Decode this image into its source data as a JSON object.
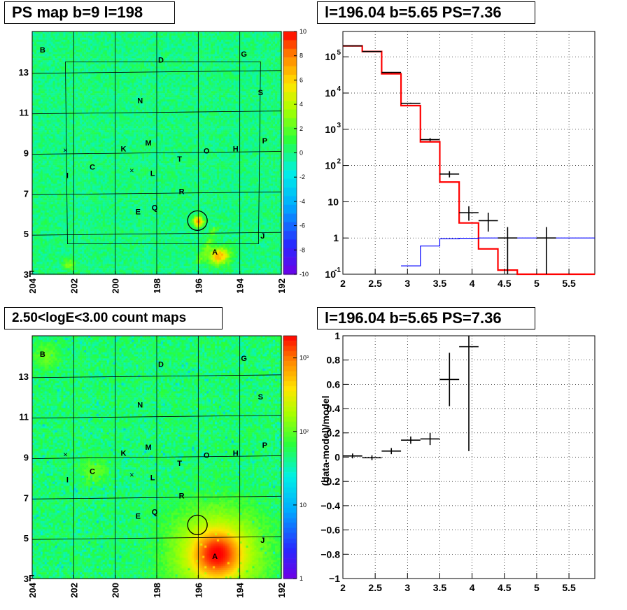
{
  "panels": {
    "ps_map": {
      "title": "PS map b=9 l=198",
      "x_ticks": [
        "204",
        "202",
        "200",
        "198",
        "196",
        "194",
        "192"
      ],
      "y_ticks": [
        "3",
        "5",
        "7",
        "9",
        "11",
        "13"
      ],
      "colorbar_ticks": [
        "10",
        "8",
        "6",
        "4",
        "2",
        "0",
        "-2",
        "-4",
        "-6",
        "-8",
        "-10"
      ],
      "corner_label": "F"
    },
    "count_map": {
      "title": "2.50<logE<3.00 count maps",
      "x_ticks": [
        "204",
        "202",
        "200",
        "198",
        "196",
        "194",
        "192"
      ],
      "y_ticks": [
        "3",
        "5",
        "7",
        "9",
        "11",
        "13"
      ],
      "colorbar_ticks": [
        "10³",
        "10²",
        "10",
        "1"
      ],
      "corner_label": "F"
    },
    "spectrum": {
      "title": "l=196.04 b=5.65 PS=7.36"
    },
    "ratio": {
      "title": "l=196.04 b=5.65 PS=7.36"
    }
  },
  "source_labels": [
    "B",
    "D",
    "G",
    "N",
    "S",
    "M",
    "K",
    "H",
    "O",
    "P",
    "C",
    "T",
    "I",
    "L",
    "R",
    "E",
    "Q",
    "J",
    "A"
  ],
  "colors": {
    "data": "#000000",
    "model": "#ff0000",
    "background": "#0000ff",
    "map_green": "#33ff44",
    "map_cyan": "#22eeff"
  },
  "chart_data": [
    {
      "type": "heatmap",
      "title": "PS map b=9 l=198",
      "xlim": [
        204,
        192
      ],
      "ylim": [
        3,
        15
      ],
      "zlim": [
        -10,
        10
      ],
      "description_values": {
        "hotspot_near": [
          196.0,
          5.6
        ],
        "hotspot_near_A": [
          195.0,
          3.8
        ]
      }
    },
    {
      "type": "heatmap",
      "title": "2.50<logE<3.00 count maps",
      "xlim": [
        204,
        192
      ],
      "ylim": [
        3,
        15
      ],
      "zlim": [
        1,
        2000
      ],
      "zscale": "log"
    },
    {
      "type": "line",
      "title": "l=196.04 b=5.65 PS=7.36",
      "xlim": [
        2,
        5.9
      ],
      "ylim": [
        0.1,
        500000
      ],
      "yscale": "log",
      "grid": true,
      "series": [
        {
          "name": "data",
          "kind": "errorbar",
          "points": [
            {
              "x": 2.15,
              "xerr": 0.15,
              "y": 200000,
              "ylo": 195000,
              "yhi": 205000
            },
            {
              "x": 2.45,
              "xerr": 0.15,
              "y": 140000,
              "ylo": 137000,
              "yhi": 143000
            },
            {
              "x": 2.75,
              "xerr": 0.15,
              "y": 37000,
              "ylo": 36000,
              "yhi": 38000
            },
            {
              "x": 3.05,
              "xerr": 0.15,
              "y": 5200,
              "ylo": 5000,
              "yhi": 5400
            },
            {
              "x": 3.35,
              "xerr": 0.15,
              "y": 520,
              "ylo": 470,
              "yhi": 570
            },
            {
              "x": 3.65,
              "xerr": 0.15,
              "y": 58,
              "ylo": 47,
              "yhi": 70
            },
            {
              "x": 3.95,
              "xerr": 0.15,
              "y": 5,
              "ylo": 3,
              "yhi": 7.5
            },
            {
              "x": 4.25,
              "xerr": 0.15,
              "y": 3,
              "ylo": 1.5,
              "yhi": 5
            },
            {
              "x": 4.55,
              "xerr": 0.15,
              "y": 1,
              "ylo": 0.1,
              "yhi": 2
            },
            {
              "x": 5.15,
              "xerr": 0.15,
              "y": 1,
              "ylo": 0.1,
              "yhi": 2
            }
          ]
        },
        {
          "name": "model",
          "kind": "step",
          "edges": [
            2.0,
            2.3,
            2.6,
            2.9,
            3.2,
            3.5,
            3.8,
            4.1,
            4.4,
            4.7,
            5.0,
            5.3,
            5.6,
            5.9
          ],
          "values": [
            200000,
            140000,
            34000,
            4500,
            450,
            35,
            2.6,
            0.5,
            0.13,
            0.1,
            0.1,
            0.1,
            0.1
          ]
        },
        {
          "name": "background",
          "kind": "step",
          "edges": [
            2.9,
            3.2,
            3.5,
            3.8,
            4.1,
            4.4,
            4.7,
            5.0,
            5.3,
            5.6,
            5.9
          ],
          "values": [
            0.17,
            0.6,
            0.95,
            0.98,
            1.0,
            1.0,
            1.0,
            1.0,
            1.0,
            1.0
          ]
        }
      ]
    },
    {
      "type": "scatter",
      "title": "l=196.04 b=5.65 PS=7.36",
      "ylabel": "(data-model)/model",
      "xlim": [
        2,
        5.9
      ],
      "ylim": [
        -1,
        1
      ],
      "grid": true,
      "series": [
        {
          "name": "data",
          "kind": "errorbar",
          "points": [
            {
              "x": 2.15,
              "xerr": 0.15,
              "y": 0.01,
              "yerr": 0.02
            },
            {
              "x": 2.45,
              "xerr": 0.15,
              "y": -0.005,
              "yerr": 0.02
            },
            {
              "x": 2.75,
              "xerr": 0.15,
              "y": 0.05,
              "yerr": 0.025
            },
            {
              "x": 3.05,
              "xerr": 0.15,
              "y": 0.14,
              "yerr": 0.03
            },
            {
              "x": 3.35,
              "xerr": 0.15,
              "y": 0.15,
              "yerr": 0.05
            },
            {
              "x": 3.65,
              "xerr": 0.15,
              "y": 0.64,
              "yerr": 0.22
            },
            {
              "x": 3.95,
              "xerr": 0.15,
              "y": 0.91,
              "yerr": 0.86
            }
          ]
        }
      ]
    }
  ]
}
